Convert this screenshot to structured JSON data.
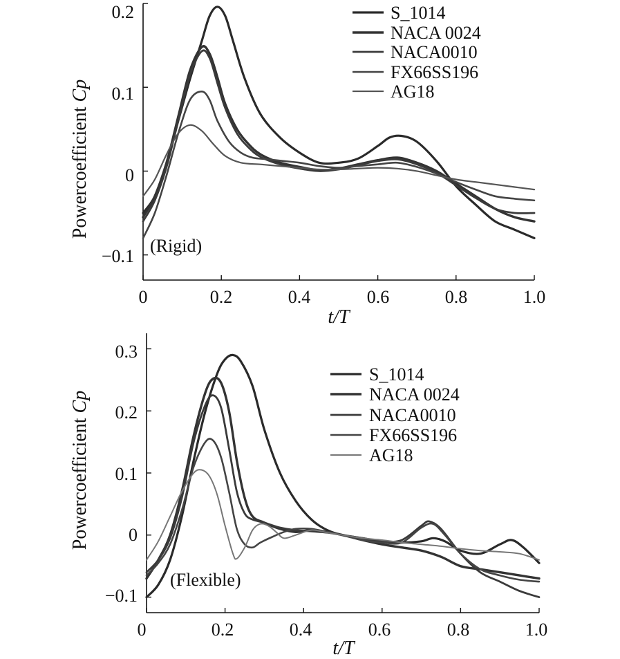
{
  "chart_data": [
    {
      "type": "line",
      "title": "",
      "annotation": "(Rigid)",
      "xlabel": "t/T",
      "ylabel_prefix": "Powercoefficient ",
      "ylabel_symbol": "Cp",
      "xlim": [
        0,
        1.0
      ],
      "ylim": [
        -0.13,
        0.2
      ],
      "x_ticks": [
        0,
        0.2,
        0.4,
        0.6,
        0.8,
        1.0
      ],
      "x_tick_labels": [
        "0",
        "0.2",
        "0.4",
        "0.6",
        "0.8",
        "1.0"
      ],
      "y_ticks": [
        -0.1,
        0,
        0.1,
        0.2
      ],
      "y_tick_labels": [
        "−0.1",
        "0",
        "0.1",
        "0.2"
      ],
      "legend_labels": [
        "S_1014",
        "NACA 0024",
        "NACA0010",
        "FX66SS196",
        "AG18"
      ],
      "series": [
        {
          "name": "S_1014",
          "color": "#2a2a2a",
          "width": 3.2,
          "x": [
            0,
            0.03,
            0.06,
            0.09,
            0.12,
            0.15,
            0.17,
            0.19,
            0.21,
            0.23,
            0.26,
            0.3,
            0.35,
            0.4,
            0.45,
            0.5,
            0.55,
            0.6,
            0.63,
            0.66,
            0.7,
            0.75,
            0.8,
            0.85,
            0.9,
            0.95,
            1.0
          ],
          "y": [
            -0.05,
            -0.03,
            0.01,
            0.06,
            0.11,
            0.155,
            0.185,
            0.196,
            0.185,
            0.155,
            0.11,
            0.068,
            0.04,
            0.022,
            0.01,
            0.01,
            0.015,
            0.03,
            0.04,
            0.042,
            0.035,
            0.012,
            -0.018,
            -0.04,
            -0.06,
            -0.07,
            -0.08
          ]
        },
        {
          "name": "NACA 0024",
          "color": "#333333",
          "width": 3.4,
          "x": [
            0,
            0.03,
            0.06,
            0.09,
            0.12,
            0.15,
            0.17,
            0.19,
            0.21,
            0.24,
            0.27,
            0.3,
            0.35,
            0.4,
            0.45,
            0.5,
            0.55,
            0.6,
            0.65,
            0.7,
            0.75,
            0.8,
            0.85,
            0.9,
            0.95,
            1.0
          ],
          "y": [
            -0.055,
            -0.03,
            0.01,
            0.065,
            0.12,
            0.148,
            0.14,
            0.112,
            0.08,
            0.05,
            0.032,
            0.02,
            0.01,
            0.005,
            0.001,
            0.003,
            0.008,
            0.013,
            0.016,
            0.01,
            0.0,
            -0.015,
            -0.03,
            -0.045,
            -0.055,
            -0.06
          ]
        },
        {
          "name": "NACA0010",
          "color": "#3a3a3a",
          "width": 2.8,
          "x": [
            0,
            0.03,
            0.06,
            0.09,
            0.12,
            0.15,
            0.17,
            0.19,
            0.21,
            0.24,
            0.27,
            0.3,
            0.35,
            0.4,
            0.45,
            0.5,
            0.55,
            0.6,
            0.65,
            0.7,
            0.75,
            0.8,
            0.85,
            0.9,
            0.95,
            1.0
          ],
          "y": [
            -0.06,
            -0.035,
            0.005,
            0.06,
            0.115,
            0.143,
            0.135,
            0.105,
            0.075,
            0.045,
            0.028,
            0.017,
            0.008,
            0.003,
            0.0,
            0.002,
            0.007,
            0.012,
            0.014,
            0.008,
            -0.002,
            -0.017,
            -0.032,
            -0.045,
            -0.05,
            -0.05
          ]
        },
        {
          "name": "FX66SS196",
          "color": "#444444",
          "width": 2.6,
          "x": [
            0,
            0.03,
            0.06,
            0.09,
            0.12,
            0.15,
            0.17,
            0.19,
            0.22,
            0.25,
            0.28,
            0.32,
            0.36,
            0.4,
            0.45,
            0.5,
            0.55,
            0.6,
            0.65,
            0.7,
            0.75,
            0.8,
            0.85,
            0.9,
            0.95,
            1.0
          ],
          "y": [
            -0.08,
            -0.05,
            -0.005,
            0.045,
            0.085,
            0.095,
            0.085,
            0.06,
            0.035,
            0.022,
            0.016,
            0.014,
            0.012,
            0.01,
            0.006,
            0.004,
            0.006,
            0.008,
            0.01,
            0.005,
            -0.003,
            -0.013,
            -0.022,
            -0.03,
            -0.033,
            -0.035
          ]
        },
        {
          "name": "AG18",
          "color": "#555555",
          "width": 2.2,
          "x": [
            0,
            0.03,
            0.06,
            0.09,
            0.12,
            0.15,
            0.18,
            0.21,
            0.25,
            0.3,
            0.35,
            0.4,
            0.45,
            0.5,
            0.55,
            0.6,
            0.65,
            0.7,
            0.75,
            0.8,
            0.85,
            0.9,
            0.95,
            1.0
          ],
          "y": [
            -0.03,
            -0.01,
            0.02,
            0.045,
            0.055,
            0.048,
            0.032,
            0.018,
            0.01,
            0.008,
            0.006,
            0.004,
            0.002,
            0.002,
            0.003,
            0.004,
            0.003,
            0.0,
            -0.005,
            -0.01,
            -0.013,
            -0.016,
            -0.019,
            -0.022
          ]
        }
      ]
    },
    {
      "type": "line",
      "title": "",
      "annotation": "(Flexible)",
      "xlabel": "t/T",
      "ylabel_prefix": "Powercoefficient ",
      "ylabel_symbol": "Cp",
      "xlim": [
        0,
        1.0
      ],
      "ylim": [
        -0.125,
        0.325
      ],
      "x_ticks": [
        0,
        0.2,
        0.4,
        0.6,
        0.8,
        1.0
      ],
      "x_tick_labels": [
        "0",
        "0.2",
        "0.4",
        "0.6",
        "0.8",
        "1.0"
      ],
      "y_ticks": [
        -0.1,
        0,
        0.1,
        0.2,
        0.3
      ],
      "y_tick_labels": [
        "−0.1",
        "0",
        "0.1",
        "0.2",
        "0.3"
      ],
      "legend_labels": [
        "S_1014",
        "NACA 0024",
        "NACA0010",
        "FX66SS196",
        "AG18"
      ],
      "series": [
        {
          "name": "S_1014",
          "color": "#2a2a2a",
          "width": 3.2,
          "x": [
            0,
            0.03,
            0.06,
            0.09,
            0.12,
            0.15,
            0.18,
            0.2,
            0.22,
            0.24,
            0.27,
            0.3,
            0.34,
            0.38,
            0.42,
            0.46,
            0.5,
            0.55,
            0.6,
            0.65,
            0.7,
            0.73,
            0.76,
            0.8,
            0.85,
            0.9,
            0.93,
            0.96,
            1.0
          ],
          "y": [
            -0.1,
            -0.08,
            -0.04,
            0.03,
            0.12,
            0.2,
            0.26,
            0.283,
            0.29,
            0.28,
            0.24,
            0.17,
            0.1,
            0.055,
            0.025,
            0.008,
            0.0,
            -0.005,
            -0.01,
            -0.012,
            -0.01,
            -0.005,
            -0.01,
            -0.025,
            -0.03,
            -0.015,
            -0.008,
            -0.02,
            -0.045
          ]
        },
        {
          "name": "NACA 0024",
          "color": "#333333",
          "width": 3.4,
          "x": [
            0,
            0.03,
            0.06,
            0.09,
            0.12,
            0.15,
            0.17,
            0.19,
            0.21,
            0.23,
            0.25,
            0.27,
            0.3,
            0.34,
            0.38,
            0.42,
            0.46,
            0.5,
            0.55,
            0.6,
            0.65,
            0.7,
            0.75,
            0.8,
            0.85,
            0.9,
            0.95,
            1.0
          ],
          "y": [
            -0.07,
            -0.04,
            0.0,
            0.07,
            0.16,
            0.23,
            0.252,
            0.245,
            0.2,
            0.12,
            0.06,
            0.03,
            0.02,
            0.01,
            0.005,
            0.008,
            0.005,
            0.0,
            -0.008,
            -0.015,
            -0.02,
            -0.025,
            -0.035,
            -0.05,
            -0.055,
            -0.06,
            -0.065,
            -0.07
          ]
        },
        {
          "name": "NACA0010",
          "color": "#3a3a3a",
          "width": 2.8,
          "x": [
            0,
            0.03,
            0.06,
            0.09,
            0.12,
            0.15,
            0.17,
            0.19,
            0.21,
            0.23,
            0.25,
            0.27,
            0.3,
            0.34,
            0.38,
            0.42,
            0.46,
            0.5,
            0.55,
            0.6,
            0.65,
            0.7,
            0.72,
            0.75,
            0.8,
            0.85,
            0.9,
            0.95,
            1.0
          ],
          "y": [
            -0.06,
            -0.04,
            -0.005,
            0.06,
            0.15,
            0.21,
            0.225,
            0.205,
            0.14,
            0.07,
            0.035,
            0.025,
            0.02,
            0.012,
            0.008,
            0.006,
            0.004,
            0.0,
            -0.005,
            -0.01,
            -0.008,
            0.015,
            0.022,
            0.01,
            -0.03,
            -0.06,
            -0.075,
            -0.09,
            -0.1
          ]
        },
        {
          "name": "FX66SS196",
          "color": "#444444",
          "width": 2.6,
          "x": [
            0,
            0.03,
            0.06,
            0.09,
            0.12,
            0.15,
            0.17,
            0.19,
            0.21,
            0.23,
            0.25,
            0.27,
            0.29,
            0.32,
            0.35,
            0.38,
            0.42,
            0.46,
            0.5,
            0.55,
            0.6,
            0.65,
            0.7,
            0.73,
            0.76,
            0.8,
            0.85,
            0.9,
            0.95,
            1.0
          ],
          "y": [
            -0.065,
            -0.045,
            -0.015,
            0.04,
            0.11,
            0.15,
            0.152,
            0.125,
            0.07,
            0.01,
            -0.015,
            -0.02,
            -0.012,
            -0.003,
            0.005,
            0.01,
            0.01,
            0.005,
            0.0,
            -0.008,
            -0.012,
            -0.012,
            0.012,
            0.018,
            0.0,
            -0.03,
            -0.055,
            -0.065,
            -0.072,
            -0.075
          ]
        },
        {
          "name": "AG18",
          "color": "#777777",
          "width": 2.0,
          "x": [
            0,
            0.03,
            0.06,
            0.09,
            0.12,
            0.14,
            0.16,
            0.18,
            0.2,
            0.22,
            0.23,
            0.25,
            0.27,
            0.29,
            0.31,
            0.33,
            0.35,
            0.38,
            0.42,
            0.46,
            0.5,
            0.55,
            0.6,
            0.65,
            0.7,
            0.75,
            0.8,
            0.85,
            0.9,
            0.95,
            1.0
          ],
          "y": [
            -0.04,
            -0.01,
            0.03,
            0.07,
            0.1,
            0.105,
            0.095,
            0.065,
            0.015,
            -0.03,
            -0.038,
            -0.02,
            0.008,
            0.018,
            0.015,
            0.005,
            -0.005,
            0.0,
            0.008,
            0.004,
            0.0,
            -0.005,
            -0.008,
            -0.012,
            -0.015,
            -0.018,
            -0.022,
            -0.025,
            -0.027,
            -0.03,
            -0.04
          ]
        }
      ]
    }
  ]
}
